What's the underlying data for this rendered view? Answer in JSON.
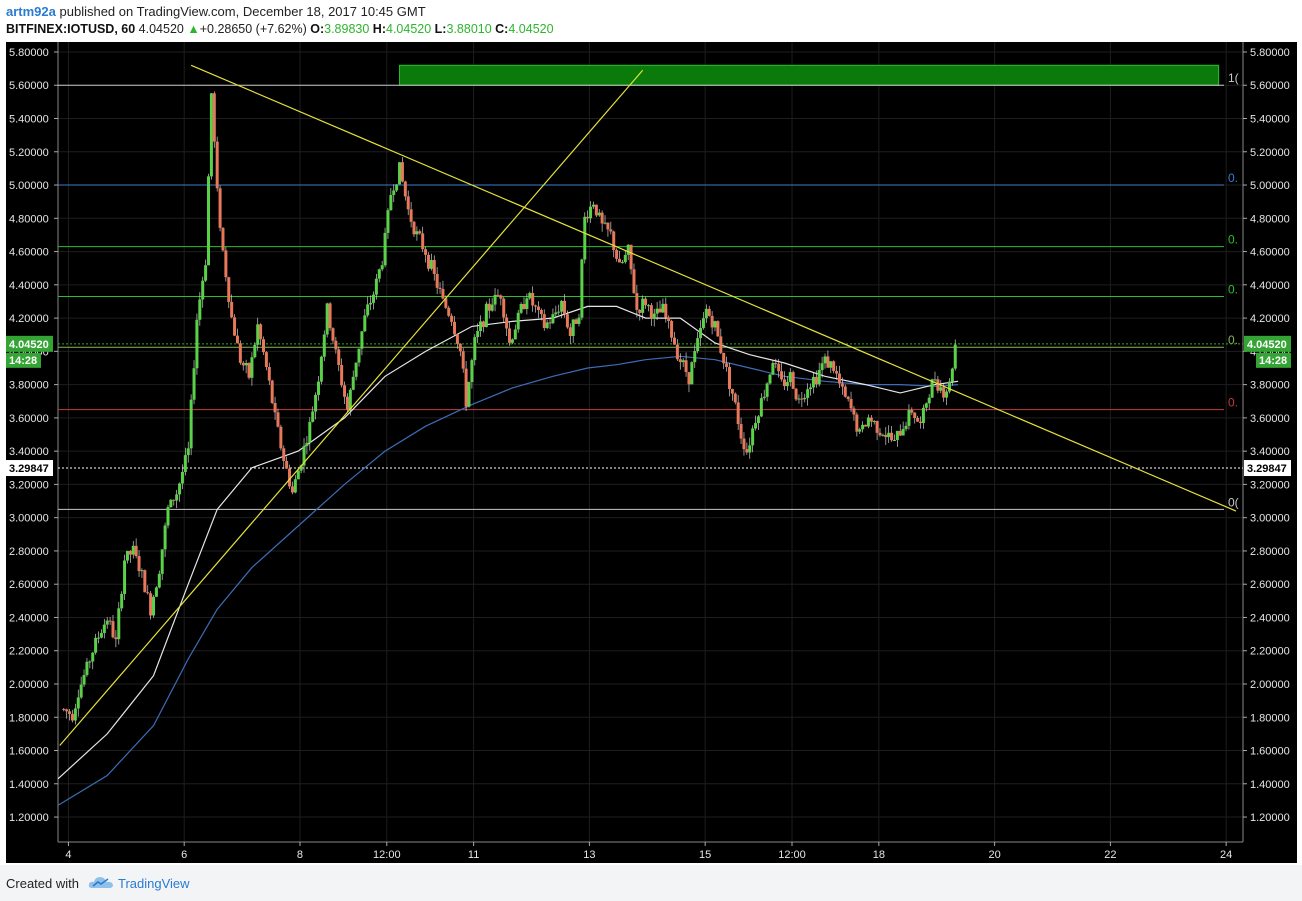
{
  "header": {
    "author": "artm92a",
    "published": "published on TradingView.com, December 18, 2017 10:45 GMT",
    "symbol": "BITFINEX:IOTUSD, 60",
    "last": "4.04520",
    "change_arrow": "▲",
    "change": "+0.28650 (+7.62%)",
    "o_label": "O:",
    "o": "3.89830",
    "h_label": "H:",
    "h": "4.04520",
    "l_label": "L:",
    "l": "3.88010",
    "c_label": "C:",
    "c": "4.04520"
  },
  "footer": {
    "created_with": "Created with",
    "brand": "TradingView",
    "logo_icon": "tradingview-cloud-icon"
  },
  "colors": {
    "background": "#000000",
    "grid": "#1e1e1e",
    "up_candle": "#5bd14a",
    "down_candle": "#e8785a",
    "trendline": "#e5e23a",
    "ma_fast": "#e6e6e6",
    "ma_slow": "#3d6db8",
    "zone": "#0a7a0a",
    "price_badge": "#34a534"
  },
  "chart_data": {
    "type": "candlestick",
    "symbol": "BITFINEX:IOTUSD",
    "interval": "60",
    "ylim": [
      1.05,
      5.86
    ],
    "y_ticks": [
      "5.80000",
      "5.60000",
      "5.40000",
      "5.20000",
      "5.00000",
      "4.80000",
      "4.60000",
      "4.40000",
      "4.20000",
      "4.00000",
      "3.80000",
      "3.60000",
      "3.40000",
      "3.20000",
      "3.00000",
      "2.80000",
      "2.60000",
      "2.40000",
      "2.20000",
      "2.00000",
      "1.80000",
      "1.60000",
      "1.40000",
      "1.20000"
    ],
    "y_tick_values": [
      5.8,
      5.6,
      5.4,
      5.2,
      5.0,
      4.8,
      4.6,
      4.4,
      4.2,
      4.0,
      3.8,
      3.6,
      3.4,
      3.2,
      3.0,
      2.8,
      2.6,
      2.4,
      2.2,
      2.0,
      1.8,
      1.6,
      1.4,
      1.2
    ],
    "x_ticks": [
      {
        "label": "4",
        "day": 3.83
      },
      {
        "label": "6",
        "day": 5.83
      },
      {
        "label": "8",
        "day": 7.83
      },
      {
        "label": "12:00",
        "day": 9.33
      },
      {
        "label": "11",
        "day": 10.83
      },
      {
        "label": "13",
        "day": 12.83
      },
      {
        "label": "15",
        "day": 14.83
      },
      {
        "label": "12:00",
        "day": 16.33
      },
      {
        "label": "18",
        "day": 17.83
      },
      {
        "label": "20",
        "day": 19.83
      },
      {
        "label": "22",
        "day": 21.83
      },
      {
        "label": "24",
        "day": 23.83
      }
    ],
    "x_range_days": [
      3.65,
      24.0
    ],
    "last_price": {
      "value": 4.0452,
      "label": "4.04520",
      "countdown": "14:28"
    },
    "marker_price": {
      "value": 3.29847,
      "label": "3.29847"
    },
    "candle_anchors": [
      [
        3.75,
        1.85
      ],
      [
        3.95,
        1.82
      ],
      [
        4.05,
        1.95
      ],
      [
        4.2,
        2.1
      ],
      [
        4.35,
        2.25
      ],
      [
        4.55,
        2.4
      ],
      [
        4.7,
        2.25
      ],
      [
        4.85,
        2.75
      ],
      [
        5.0,
        2.8
      ],
      [
        5.15,
        2.65
      ],
      [
        5.3,
        2.45
      ],
      [
        5.45,
        2.7
      ],
      [
        5.6,
        3.05
      ],
      [
        5.75,
        3.15
      ],
      [
        5.95,
        3.4
      ],
      [
        6.1,
        4.2
      ],
      [
        6.25,
        4.55
      ],
      [
        6.35,
        5.55
      ],
      [
        6.45,
        4.95
      ],
      [
        6.55,
        4.6
      ],
      [
        6.7,
        4.2
      ],
      [
        6.85,
        3.95
      ],
      [
        7.0,
        3.85
      ],
      [
        7.15,
        4.15
      ],
      [
        7.3,
        3.9
      ],
      [
        7.45,
        3.6
      ],
      [
        7.6,
        3.35
      ],
      [
        7.75,
        3.15
      ],
      [
        7.9,
        3.35
      ],
      [
        8.05,
        3.55
      ],
      [
        8.2,
        3.85
      ],
      [
        8.35,
        4.25
      ],
      [
        8.55,
        3.9
      ],
      [
        8.7,
        3.65
      ],
      [
        8.85,
        3.95
      ],
      [
        9.0,
        4.2
      ],
      [
        9.15,
        4.35
      ],
      [
        9.3,
        4.55
      ],
      [
        9.45,
        4.95
      ],
      [
        9.6,
        5.1
      ],
      [
        9.75,
        4.85
      ],
      [
        9.9,
        4.7
      ],
      [
        10.05,
        4.6
      ],
      [
        10.2,
        4.45
      ],
      [
        10.35,
        4.3
      ],
      [
        10.5,
        4.2
      ],
      [
        10.65,
        4.0
      ],
      [
        10.75,
        3.7
      ],
      [
        10.9,
        4.05
      ],
      [
        11.05,
        4.2
      ],
      [
        11.2,
        4.3
      ],
      [
        11.35,
        4.35
      ],
      [
        11.5,
        4.05
      ],
      [
        11.65,
        4.2
      ],
      [
        11.8,
        4.35
      ],
      [
        11.95,
        4.25
      ],
      [
        12.1,
        4.15
      ],
      [
        12.25,
        4.2
      ],
      [
        12.4,
        4.3
      ],
      [
        12.55,
        4.1
      ],
      [
        12.7,
        4.25
      ],
      [
        12.8,
        4.8
      ],
      [
        12.95,
        4.9
      ],
      [
        13.1,
        4.75
      ],
      [
        13.25,
        4.7
      ],
      [
        13.4,
        4.5
      ],
      [
        13.55,
        4.6
      ],
      [
        13.7,
        4.25
      ],
      [
        13.85,
        4.3
      ],
      [
        14.0,
        4.2
      ],
      [
        14.15,
        4.25
      ],
      [
        14.3,
        4.1
      ],
      [
        14.45,
        3.95
      ],
      [
        14.6,
        3.85
      ],
      [
        14.75,
        4.05
      ],
      [
        14.9,
        4.25
      ],
      [
        15.05,
        4.15
      ],
      [
        15.2,
        3.95
      ],
      [
        15.35,
        3.75
      ],
      [
        15.5,
        3.5
      ],
      [
        15.6,
        3.4
      ],
      [
        15.75,
        3.6
      ],
      [
        15.9,
        3.75
      ],
      [
        16.05,
        3.95
      ],
      [
        16.2,
        3.8
      ],
      [
        16.35,
        3.85
      ],
      [
        16.5,
        3.7
      ],
      [
        16.65,
        3.8
      ],
      [
        16.8,
        3.85
      ],
      [
        16.95,
        3.95
      ],
      [
        17.1,
        3.9
      ],
      [
        17.25,
        3.75
      ],
      [
        17.4,
        3.65
      ],
      [
        17.55,
        3.5
      ],
      [
        17.7,
        3.6
      ],
      [
        17.85,
        3.55
      ],
      [
        18.0,
        3.5
      ],
      [
        18.15,
        3.45
      ],
      [
        18.3,
        3.55
      ],
      [
        18.45,
        3.65
      ],
      [
        18.6,
        3.55
      ],
      [
        18.7,
        3.7
      ],
      [
        18.85,
        3.85
      ],
      [
        19.0,
        3.75
      ],
      [
        19.1,
        3.8
      ],
      [
        19.2,
        4.04
      ]
    ],
    "ma_fast_anchors": [
      [
        3.65,
        1.43
      ],
      [
        4.5,
        1.7
      ],
      [
        5.3,
        2.05
      ],
      [
        5.9,
        2.6
      ],
      [
        6.4,
        3.05
      ],
      [
        7.0,
        3.3
      ],
      [
        7.8,
        3.4
      ],
      [
        8.6,
        3.6
      ],
      [
        9.3,
        3.85
      ],
      [
        10.0,
        4.0
      ],
      [
        10.8,
        4.15
      ],
      [
        11.5,
        4.18
      ],
      [
        12.2,
        4.2
      ],
      [
        12.8,
        4.27
      ],
      [
        13.3,
        4.27
      ],
      [
        13.8,
        4.2
      ],
      [
        14.4,
        4.2
      ],
      [
        15.0,
        4.05
      ],
      [
        15.6,
        3.98
      ],
      [
        16.2,
        3.93
      ],
      [
        16.9,
        3.85
      ],
      [
        17.6,
        3.8
      ],
      [
        18.2,
        3.75
      ],
      [
        18.8,
        3.8
      ],
      [
        19.2,
        3.82
      ]
    ],
    "ma_slow_anchors": [
      [
        3.65,
        1.27
      ],
      [
        4.5,
        1.45
      ],
      [
        5.3,
        1.75
      ],
      [
        5.9,
        2.15
      ],
      [
        6.4,
        2.45
      ],
      [
        7.0,
        2.7
      ],
      [
        7.8,
        2.95
      ],
      [
        8.6,
        3.2
      ],
      [
        9.3,
        3.4
      ],
      [
        10.0,
        3.55
      ],
      [
        10.8,
        3.68
      ],
      [
        11.5,
        3.78
      ],
      [
        12.2,
        3.85
      ],
      [
        12.8,
        3.9
      ],
      [
        13.3,
        3.92
      ],
      [
        13.8,
        3.95
      ],
      [
        14.4,
        3.97
      ],
      [
        15.0,
        3.95
      ],
      [
        15.6,
        3.9
      ],
      [
        16.2,
        3.85
      ],
      [
        16.9,
        3.82
      ],
      [
        17.6,
        3.8
      ],
      [
        18.2,
        3.8
      ],
      [
        18.8,
        3.79
      ],
      [
        19.2,
        3.8
      ]
    ],
    "trendlines": [
      {
        "from": [
          5.95,
          5.72
        ],
        "to": [
          24.0,
          3.04
        ]
      },
      {
        "from": [
          3.68,
          1.63
        ],
        "to": [
          13.75,
          5.69
        ]
      }
    ],
    "horizontal_levels": [
      {
        "value": 5.6,
        "color": "#c8c8c8",
        "label": "1("
      },
      {
        "value": 5.0,
        "color": "#3d7bd1",
        "label": "0."
      },
      {
        "value": 4.63,
        "color": "#2bbf2b",
        "label": "0."
      },
      {
        "value": 4.33,
        "color": "#2bbf2b",
        "label": "0."
      },
      {
        "value": 4.025,
        "color": "#8ab35a",
        "label": "0."
      },
      {
        "value": 3.65,
        "color": "#c43b3b",
        "label": "0."
      },
      {
        "value": 3.05,
        "color": "#c8c8c8",
        "label": "0("
      }
    ],
    "zone": {
      "from_day": 9.55,
      "to_day": 23.7,
      "low": 5.6,
      "high": 5.72
    }
  }
}
